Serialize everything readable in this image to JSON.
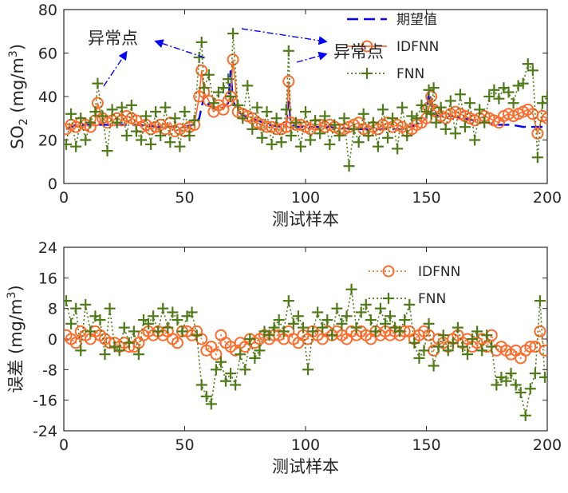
{
  "chart_data": [
    {
      "type": "line",
      "title": "",
      "xlabel": "测试样本",
      "ylabel": "SO₂ (mg/m³)",
      "ylabel_parts": [
        "SO",
        "2",
        " (mg/m",
        "3",
        ")"
      ],
      "xlim": [
        0,
        200
      ],
      "ylim": [
        0,
        80
      ],
      "xticks": [
        0,
        50,
        100,
        150,
        200
      ],
      "yticks": [
        0,
        20,
        40,
        60,
        80
      ],
      "grid": false,
      "legend": "top-right",
      "series": [
        {
          "name": "期望值",
          "style": "dashed",
          "color": "#0000ff",
          "x": [
            1,
            5,
            10,
            14,
            20,
            30,
            40,
            50,
            54,
            56,
            58,
            60,
            63,
            66,
            68,
            69,
            70,
            72,
            75,
            80,
            85,
            90,
            92,
            93,
            94,
            96,
            100,
            110,
            120,
            130,
            140,
            146,
            150,
            151,
            152,
            153,
            155,
            160,
            165,
            170,
            175,
            180,
            185,
            190,
            195,
            200
          ],
          "values": [
            25,
            27,
            27,
            27,
            27,
            27,
            26,
            26,
            27,
            30,
            40,
            36,
            34,
            35,
            37,
            52,
            38,
            33,
            31,
            29,
            27,
            26,
            27,
            38,
            27,
            26,
            26,
            26,
            25,
            25,
            25,
            27,
            30,
            42,
            37,
            32,
            31,
            31,
            30,
            29,
            28,
            27,
            27,
            26,
            26,
            26
          ]
        },
        {
          "name": "IDFNN",
          "style": "solid+circle",
          "color": "#ff6b2a",
          "x": [
            1,
            3,
            5,
            7,
            9,
            11,
            13,
            14,
            16,
            18,
            20,
            22,
            24,
            26,
            28,
            30,
            32,
            34,
            36,
            38,
            40,
            42,
            44,
            46,
            48,
            50,
            52,
            54,
            56,
            57,
            58,
            60,
            62,
            64,
            66,
            68,
            69,
            70,
            72,
            74,
            76,
            78,
            80,
            82,
            84,
            86,
            88,
            90,
            92,
            93,
            94,
            96,
            98,
            100,
            102,
            104,
            106,
            108,
            110,
            112,
            114,
            116,
            118,
            120,
            122,
            124,
            126,
            128,
            130,
            132,
            134,
            136,
            138,
            140,
            142,
            144,
            146,
            148,
            150,
            151,
            152,
            153,
            154,
            156,
            158,
            160,
            162,
            164,
            166,
            168,
            170,
            172,
            174,
            176,
            178,
            180,
            182,
            184,
            186,
            188,
            190,
            192,
            194,
            196,
            198,
            200
          ],
          "values": [
            25,
            27,
            26,
            28,
            27,
            26,
            29,
            37,
            30,
            28,
            29,
            30,
            29,
            31,
            30,
            29,
            26,
            27,
            25,
            26,
            27,
            25,
            28,
            24,
            25,
            24,
            26,
            27,
            40,
            52,
            42,
            38,
            33,
            36,
            34,
            38,
            40,
            57,
            33,
            32,
            31,
            30,
            28,
            27,
            26,
            26,
            25,
            25,
            26,
            47,
            28,
            27,
            27,
            26,
            25,
            27,
            27,
            26,
            27,
            26,
            25,
            25,
            26,
            27,
            28,
            25,
            24,
            26,
            25,
            27,
            28,
            26,
            27,
            26,
            24,
            25,
            27,
            28,
            30,
            35,
            40,
            34,
            33,
            31,
            30,
            32,
            33,
            32,
            31,
            30,
            29,
            30,
            31,
            30,
            29,
            28,
            31,
            32,
            31,
            32,
            33,
            34,
            32,
            23,
            31,
            30
          ]
        },
        {
          "name": "FNN",
          "style": "dotted+plus",
          "color": "#4e7a18",
          "x": [
            1,
            3,
            5,
            7,
            9,
            11,
            13,
            14,
            16,
            18,
            20,
            22,
            24,
            26,
            28,
            30,
            32,
            34,
            36,
            38,
            40,
            42,
            44,
            46,
            48,
            50,
            52,
            54,
            56,
            57,
            58,
            60,
            62,
            64,
            66,
            68,
            69,
            70,
            72,
            74,
            76,
            78,
            80,
            82,
            84,
            86,
            88,
            90,
            92,
            93,
            94,
            96,
            98,
            100,
            102,
            104,
            106,
            108,
            110,
            112,
            114,
            116,
            118,
            120,
            122,
            124,
            126,
            128,
            130,
            132,
            134,
            136,
            138,
            140,
            142,
            144,
            146,
            148,
            150,
            151,
            152,
            153,
            154,
            156,
            158,
            160,
            162,
            164,
            166,
            168,
            170,
            172,
            174,
            176,
            178,
            180,
            182,
            184,
            186,
            188,
            190,
            192,
            194,
            196,
            198,
            200
          ],
          "values": [
            18,
            32,
            17,
            30,
            20,
            28,
            33,
            46,
            31,
            15,
            34,
            28,
            35,
            22,
            36,
            24,
            20,
            31,
            18,
            33,
            22,
            35,
            19,
            30,
            17,
            33,
            22,
            29,
            58,
            65,
            44,
            50,
            37,
            42,
            44,
            48,
            40,
            69,
            36,
            30,
            45,
            25,
            35,
            21,
            33,
            18,
            30,
            19,
            34,
            61,
            22,
            28,
            17,
            33,
            20,
            29,
            23,
            31,
            18,
            27,
            22,
            30,
            8,
            25,
            19,
            32,
            22,
            28,
            17,
            34,
            21,
            30,
            16,
            35,
            22,
            31,
            30,
            36,
            33,
            43,
            32,
            44,
            28,
            35,
            25,
            38,
            23,
            41,
            26,
            37,
            20,
            34,
            28,
            40,
            43,
            39,
            44,
            42,
            37,
            45,
            46,
            55,
            52,
            12,
            37,
            40
          ]
        }
      ],
      "annotations": [
        "异常点",
        "异常点"
      ]
    },
    {
      "type": "line",
      "title": "",
      "xlabel": "测试样本",
      "ylabel": "误差 (mg/m³)",
      "ylabel_parts": [
        "误差 (mg/m",
        "3",
        ")"
      ],
      "xlim": [
        0,
        200
      ],
      "ylim": [
        -24,
        24
      ],
      "xticks": [
        0,
        50,
        100,
        150,
        200
      ],
      "yticks": [
        -24,
        -16,
        -8,
        0,
        8,
        16,
        24
      ],
      "grid": false,
      "legend": "top-right",
      "series": [
        {
          "name": "IDFNN",
          "style": "dotted+circle",
          "color": "#ff6b2a",
          "x": [
            1,
            3,
            5,
            7,
            9,
            11,
            13,
            15,
            17,
            19,
            21,
            23,
            25,
            27,
            29,
            31,
            33,
            35,
            37,
            39,
            41,
            43,
            45,
            47,
            49,
            51,
            53,
            55,
            57,
            59,
            61,
            63,
            65,
            67,
            69,
            71,
            73,
            75,
            77,
            79,
            81,
            83,
            85,
            87,
            89,
            91,
            93,
            95,
            97,
            99,
            101,
            103,
            105,
            107,
            109,
            111,
            113,
            115,
            117,
            119,
            121,
            123,
            125,
            127,
            129,
            131,
            133,
            135,
            137,
            139,
            141,
            143,
            145,
            147,
            149,
            151,
            153,
            155,
            157,
            159,
            161,
            163,
            165,
            167,
            169,
            171,
            173,
            175,
            177,
            179,
            181,
            183,
            185,
            187,
            189,
            191,
            193,
            195,
            197,
            199
          ],
          "values": [
            1,
            0,
            -1,
            2,
            1,
            0,
            2,
            1,
            0,
            -1,
            -1,
            -2,
            -1,
            -2,
            -2,
            -1,
            1,
            2,
            1,
            2,
            1,
            2,
            0,
            -1,
            2,
            2,
            1,
            2,
            0,
            -3,
            -2,
            -4,
            1,
            -1,
            -2,
            -3,
            -1,
            -2,
            0,
            -1,
            0,
            1,
            0,
            1,
            1,
            0,
            2,
            0,
            -1,
            1,
            0,
            2,
            1,
            0,
            2,
            1,
            2,
            1,
            0,
            2,
            1,
            2,
            1,
            0,
            2,
            1,
            2,
            1,
            2,
            1,
            2,
            2,
            0,
            1,
            2,
            1,
            -3,
            0,
            -1,
            -2,
            0,
            1,
            -1,
            0,
            -2,
            -1,
            0,
            -2,
            1,
            -3,
            -2,
            -3,
            -4,
            -3,
            -5,
            -3,
            -2,
            -2,
            2,
            -3
          ]
        },
        {
          "name": "FNN",
          "style": "dotted+plus",
          "color": "#4e7a18",
          "x": [
            1,
            3,
            5,
            7,
            9,
            11,
            13,
            15,
            17,
            19,
            21,
            23,
            25,
            27,
            29,
            31,
            33,
            35,
            37,
            39,
            41,
            43,
            45,
            47,
            49,
            51,
            53,
            55,
            57,
            59,
            61,
            63,
            65,
            67,
            69,
            71,
            73,
            75,
            77,
            79,
            81,
            83,
            85,
            87,
            89,
            91,
            93,
            95,
            97,
            99,
            101,
            103,
            105,
            107,
            109,
            111,
            113,
            115,
            117,
            119,
            121,
            123,
            125,
            127,
            129,
            131,
            133,
            135,
            137,
            139,
            141,
            143,
            145,
            147,
            149,
            151,
            153,
            155,
            157,
            159,
            161,
            163,
            165,
            167,
            169,
            171,
            173,
            175,
            177,
            179,
            181,
            183,
            185,
            187,
            189,
            191,
            193,
            195,
            197,
            199
          ],
          "values": [
            10,
            4,
            8,
            -3,
            9,
            2,
            6,
            5,
            -4,
            8,
            -2,
            -3,
            3,
            -1,
            2,
            -4,
            5,
            4,
            6,
            2,
            8,
            3,
            7,
            5,
            2,
            6,
            7,
            1,
            -12,
            -15,
            -17,
            -8,
            -6,
            -11,
            -9,
            -12,
            -4,
            -8,
            0,
            -5,
            -3,
            2,
            1,
            3,
            5,
            2,
            10,
            4,
            6,
            3,
            -8,
            2,
            7,
            3,
            5,
            1,
            8,
            4,
            6,
            13,
            3,
            7,
            9,
            5,
            2,
            8,
            4,
            6,
            3,
            2,
            5,
            9,
            -1,
            -5,
            -3,
            4,
            -7,
            -2,
            1,
            -3,
            -1,
            3,
            -2,
            -4,
            0,
            2,
            -3,
            1,
            -2,
            -12,
            -10,
            -11,
            -9,
            -12,
            -14,
            -20,
            -13,
            -9,
            10,
            -10
          ]
        }
      ]
    }
  ]
}
